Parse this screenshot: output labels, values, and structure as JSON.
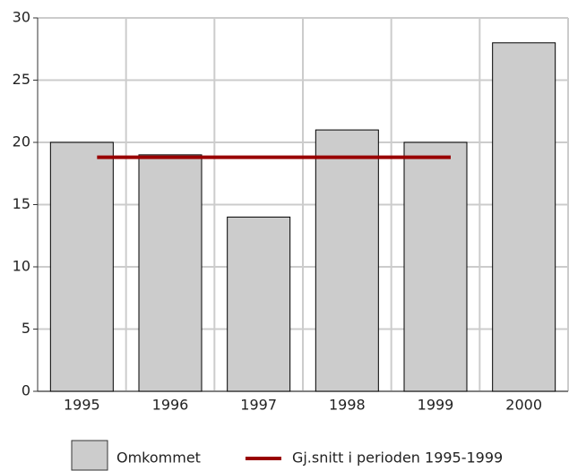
{
  "chart_data": {
    "type": "bar",
    "categories": [
      "1995",
      "1996",
      "1997",
      "1998",
      "1999",
      "2000"
    ],
    "series": [
      {
        "name": "Omkommet",
        "type": "bar",
        "color": "#cccccc",
        "values": [
          20,
          19,
          14,
          21,
          20,
          28
        ]
      },
      {
        "name": "Gj.snitt i perioden 1995-1999",
        "type": "line",
        "color": "#990000",
        "values": [
          18.8,
          18.8,
          18.8,
          18.8,
          18.8,
          null
        ]
      }
    ],
    "ylim": [
      0,
      30
    ],
    "yticks": [
      0,
      5,
      10,
      15,
      20,
      25,
      30
    ],
    "grid": true
  }
}
